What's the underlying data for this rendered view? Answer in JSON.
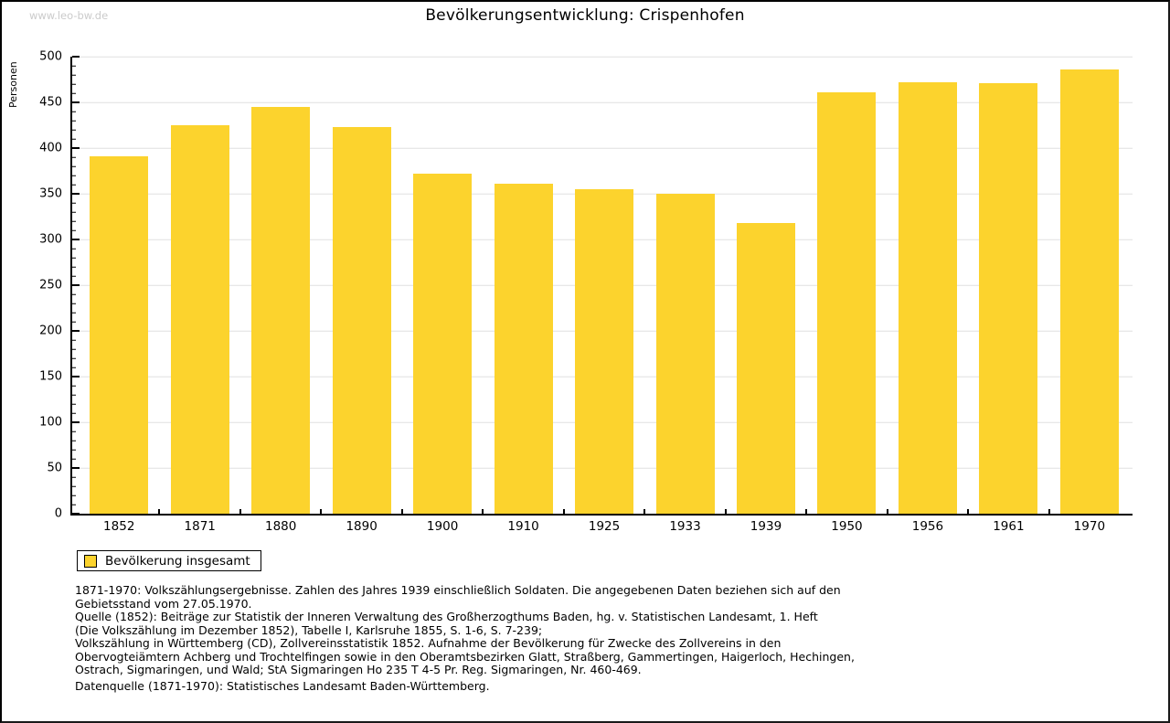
{
  "watermark": "www.leo-bw.de",
  "title": "Bevölkerungsentwicklung: Crispenhofen",
  "legend": {
    "label": "Bevölkerung insgesamt"
  },
  "colors": {
    "bar": "#fcd32d",
    "grid": "#e0e0e0",
    "axis": "#000000",
    "watermark": "#cbcbcb"
  },
  "chart_data": {
    "type": "bar",
    "title": "Bevölkerungsentwicklung: Crispenhofen",
    "xlabel": "",
    "ylabel": "Personen",
    "categories": [
      "1852",
      "1871",
      "1880",
      "1890",
      "1900",
      "1910",
      "1925",
      "1933",
      "1939",
      "1950",
      "1956",
      "1961",
      "1970"
    ],
    "values": [
      391,
      425,
      445,
      423,
      372,
      361,
      355,
      350,
      318,
      461,
      472,
      471,
      486
    ],
    "series_name": "Bevölkerung insgesamt",
    "ylim": [
      0,
      500
    ],
    "ytick_step": 50,
    "minor_tick_step": 10,
    "grid": true,
    "legend_position": "bottom-left",
    "bar_color": "#fcd32d"
  },
  "footnotes": {
    "lines": [
      "1871-1970: Volkszählungsergebnisse. Zahlen des Jahres 1939 einschließlich Soldaten. Die angegebenen Daten beziehen sich auf den",
      "Gebietsstand vom 27.05.1970.",
      "Quelle (1852): Beiträge zur Statistik der Inneren Verwaltung des Großherzogthums Baden, hg. v. Statistischen Landesamt, 1. Heft",
      "(Die Volkszählung im Dezember 1852), Tabelle I, Karlsruhe 1855, S. 1-6, S. 7-239;",
      "Volkszählung in Württemberg (CD), Zollvereinsstatistik 1852. Aufnahme der Bevölkerung für Zwecke des Zollvereins in den",
      "Obervogteiämtern Achberg und Trochtelfingen sowie in den Oberamtsbezirken Glatt, Straßberg, Gammertingen, Haigerloch, Hechingen,",
      "Ostrach, Sigmaringen, und Wald; StA Sigmaringen Ho 235 T 4-5 Pr. Reg. Sigmaringen, Nr. 460-469."
    ],
    "datasource": "Datenquelle (1871-1970): Statistisches Landesamt Baden-Württemberg."
  }
}
